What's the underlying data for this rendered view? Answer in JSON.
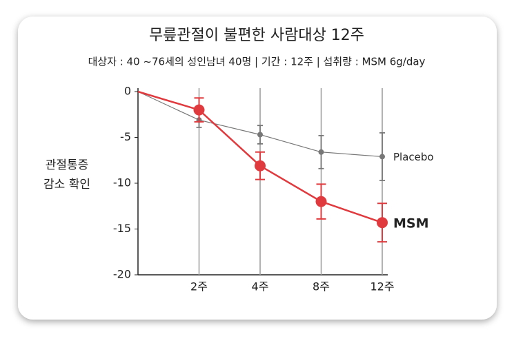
{
  "chart_data": {
    "type": "line",
    "title": "무릎관절이 불편한 사람대상 12주",
    "subtitle": "대상자 : 40 ~76세의 성인남녀 40명 | 기간 : 12주 | 섭취량 : MSM 6g/day",
    "ylabel": [
      "관절통증",
      "감소 확인"
    ],
    "categories": [
      null,
      "2주",
      "4주",
      "8주",
      "12주"
    ],
    "series": [
      {
        "name": "Placebo",
        "color": "#777777",
        "values": [
          0,
          -3.1,
          -4.7,
          -6.6,
          -7.1
        ],
        "errors": [
          null,
          0.8,
          1.0,
          1.8,
          2.6
        ]
      },
      {
        "name": "MSM",
        "color": "#e03a3e",
        "values": [
          0,
          -2.0,
          -8.1,
          -12.0,
          -14.3
        ],
        "errors": [
          null,
          1.3,
          1.5,
          1.9,
          2.1
        ]
      }
    ],
    "ylim": [
      -20,
      0
    ],
    "yticks": [
      0,
      -5,
      -10,
      -15,
      -20
    ],
    "grid": true
  }
}
